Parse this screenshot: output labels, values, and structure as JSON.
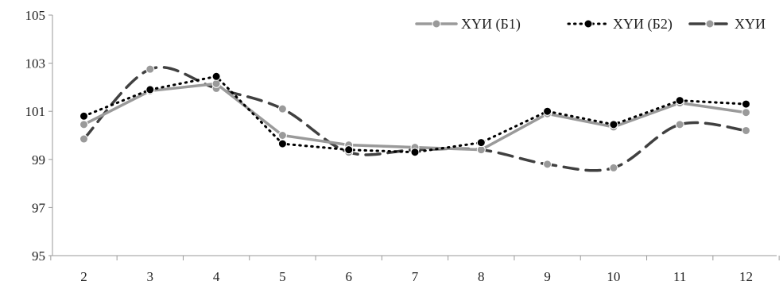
{
  "chart_data": {
    "type": "line",
    "title": "",
    "xlabel": "",
    "ylabel": "",
    "categories": [
      "2",
      "3",
      "4",
      "5",
      "6",
      "7",
      "8",
      "9",
      "10",
      "11",
      "12"
    ],
    "ylim": [
      95,
      105
    ],
    "yticks": [
      "95",
      "97",
      "99",
      "101",
      "103",
      "105"
    ],
    "grid": false,
    "legend_position": "top-right",
    "series": [
      {
        "name": "ХҮИ (Б1)",
        "style": "solid",
        "line_color": "#9a9a9a",
        "marker_color": "#9a9a9a",
        "values": [
          100.45,
          101.85,
          102.15,
          100.0,
          99.6,
          99.5,
          99.4,
          100.9,
          100.35,
          101.35,
          100.95
        ]
      },
      {
        "name": "ХҮИ (Б2)",
        "style": "dotted",
        "line_color": "#000000",
        "marker_color": "#000000",
        "values": [
          100.8,
          101.9,
          102.45,
          99.65,
          99.4,
          99.3,
          99.7,
          101.0,
          100.45,
          101.45,
          101.3
        ]
      },
      {
        "name": "ХҮИ",
        "style": "dashed",
        "line_color": "#404040",
        "marker_color": "#9a9a9a",
        "values": [
          99.85,
          102.75,
          101.95,
          101.1,
          99.3,
          99.4,
          99.4,
          98.8,
          98.65,
          100.45,
          100.2
        ]
      }
    ]
  }
}
